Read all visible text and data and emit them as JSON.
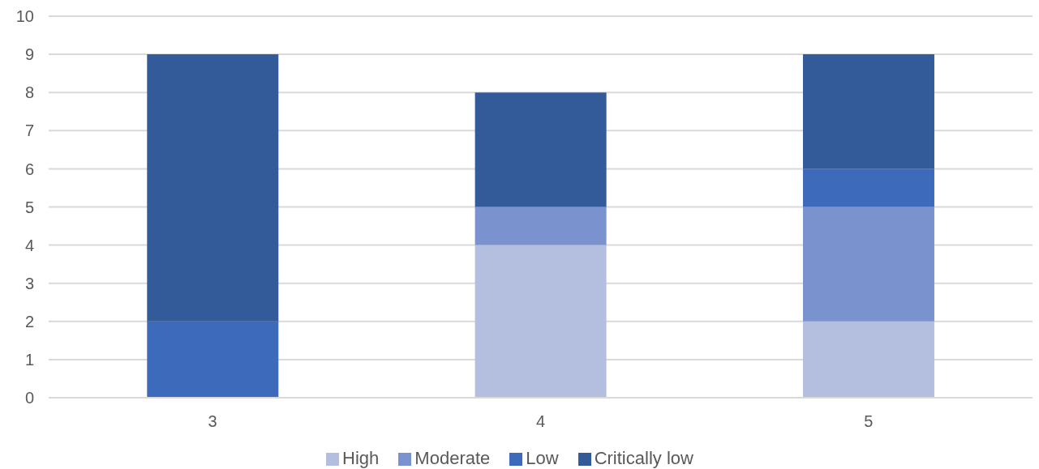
{
  "chart_data": {
    "type": "bar",
    "stacked": true,
    "categories": [
      "3",
      "4",
      "5"
    ],
    "series": [
      {
        "name": "High",
        "color": "#b4bfdf",
        "values": [
          0,
          4,
          2
        ]
      },
      {
        "name": "Moderate",
        "color": "#7a93cf",
        "values": [
          0,
          1,
          3
        ]
      },
      {
        "name": "Low",
        "color": "#3e6abb",
        "values": [
          2,
          0,
          1
        ]
      },
      {
        "name": "Critically low",
        "color": "#335a99",
        "values": [
          7,
          3,
          3
        ]
      }
    ],
    "ylim": [
      0,
      10
    ],
    "yticks": [
      0,
      1,
      2,
      3,
      4,
      5,
      6,
      7,
      8,
      9,
      10
    ],
    "grid": "y",
    "legend": "bottom"
  }
}
